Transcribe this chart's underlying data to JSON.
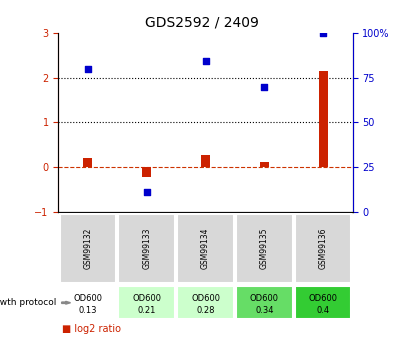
{
  "title": "GDS2592 / 2409",
  "samples": [
    "GSM99132",
    "GSM99133",
    "GSM99134",
    "GSM99135",
    "GSM99136"
  ],
  "log2_ratio": [
    0.2,
    -0.22,
    0.28,
    0.12,
    2.15
  ],
  "percentile_rank_left": [
    2.2,
    -0.55,
    2.38,
    1.78,
    3.0
  ],
  "protocol_labels_line1": [
    "OD600",
    "OD600",
    "OD600",
    "OD600",
    "OD600"
  ],
  "protocol_labels_line2": [
    "0.13",
    "0.21",
    "0.28",
    "0.34",
    "0.4"
  ],
  "protocol_colors": [
    "#ffffff",
    "#ccffcc",
    "#ccffcc",
    "#66dd66",
    "#33cc33"
  ],
  "left_ylim": [
    -1,
    3
  ],
  "right_ylim": [
    0,
    100
  ],
  "left_yticks": [
    -1,
    0,
    1,
    2,
    3
  ],
  "right_yticks": [
    0,
    25,
    50,
    75,
    100
  ],
  "bar_color": "#cc2200",
  "dot_color": "#0000cc",
  "hline_color": "#cc3300",
  "dotted_line_color": "#000000",
  "background_color": "#ffffff"
}
